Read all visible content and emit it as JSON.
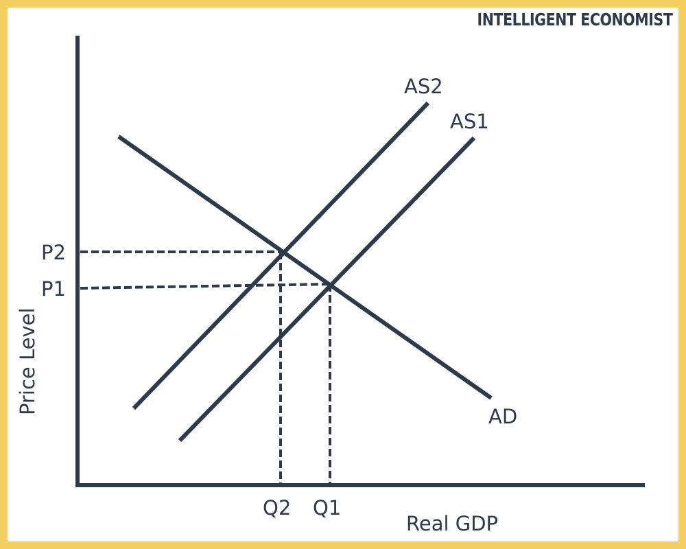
{
  "brand": "INTELLIGENT ECONOMIST",
  "axes": {
    "y_label": "Price Level",
    "x_label": "Real GDP"
  },
  "curves": {
    "as2": "AS2",
    "as1": "AS1",
    "ad": "AD"
  },
  "prices": {
    "p2": "P2",
    "p1": "P1"
  },
  "quantities": {
    "q2": "Q2",
    "q1": "Q1"
  },
  "colors": {
    "frame": "#f3cf62",
    "ink": "#2e3a4a"
  }
}
